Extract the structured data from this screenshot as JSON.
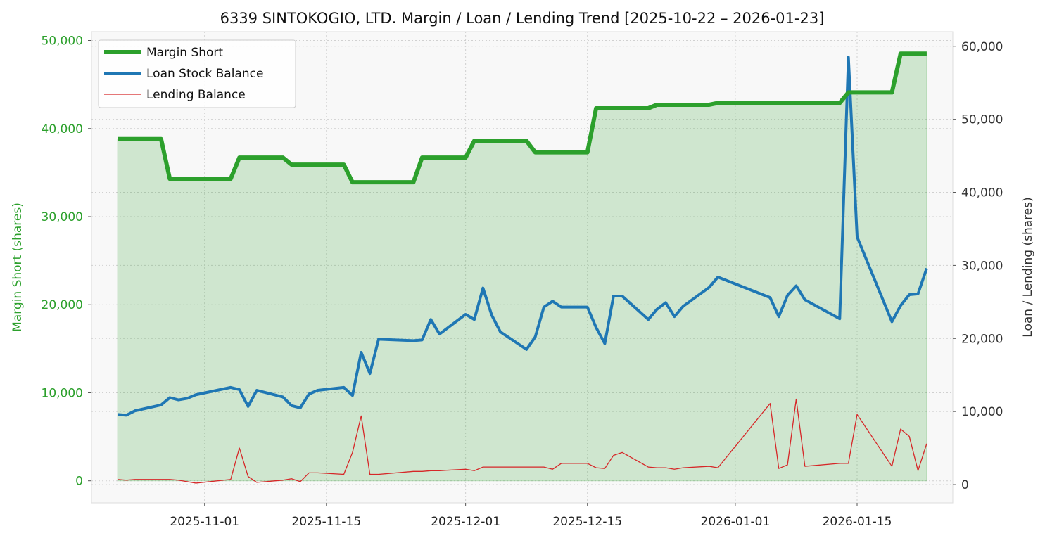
{
  "chart_data": {
    "type": "line",
    "title": "6339 SINTOKOGIO, LTD. Margin / Loan / Lending Trend [2025-10-22 – 2026-01-23]",
    "ylabel_left": "Margin Short (shares)",
    "ylabel_right": "Loan / Lending (shares)",
    "xlim": [
      "2025-10-19",
      "2026-01-26"
    ],
    "ylim_left": [
      -2500,
      51000
    ],
    "ylim_right": [
      -2500,
      62000
    ],
    "left_ticks": [
      0,
      10000,
      20000,
      30000,
      40000,
      50000
    ],
    "left_tick_labels": [
      "0",
      "10,000",
      "20,000",
      "30,000",
      "40,000",
      "50,000"
    ],
    "right_ticks": [
      0,
      10000,
      20000,
      30000,
      40000,
      50000,
      60000
    ],
    "right_tick_labels": [
      "0",
      "10,000",
      "20,000",
      "30,000",
      "40,000",
      "50,000",
      "60,000"
    ],
    "x_ticks": [
      "2025-11-01",
      "2025-11-15",
      "2025-12-01",
      "2025-12-15",
      "2026-01-01",
      "2026-01-15"
    ],
    "x_tick_labels": [
      "2025-11-01",
      "2025-11-15",
      "2025-12-01",
      "2025-12-15",
      "2026-01-01",
      "2026-01-15"
    ],
    "legend_position": "top-left",
    "colors": {
      "margin": "#2ca02c",
      "loan": "#1f77b4",
      "lending": "#d62728",
      "fill": "#2ca02c",
      "plot_bg": "#f8f8f8",
      "grid": "#d0d0d0"
    },
    "series": [
      {
        "name": "Margin Short",
        "axis": "left",
        "key": "margin",
        "points": [
          [
            "2025-10-22",
            38800
          ],
          [
            "2025-10-23",
            38800
          ],
          [
            "2025-10-24",
            38800
          ],
          [
            "2025-10-27",
            38800
          ],
          [
            "2025-10-28",
            34300
          ],
          [
            "2025-10-29",
            34300
          ],
          [
            "2025-10-30",
            34300
          ],
          [
            "2025-10-31",
            34300
          ],
          [
            "2025-11-04",
            34300
          ],
          [
            "2025-11-05",
            36700
          ],
          [
            "2025-11-06",
            36700
          ],
          [
            "2025-11-07",
            36700
          ],
          [
            "2025-11-10",
            36700
          ],
          [
            "2025-11-11",
            35900
          ],
          [
            "2025-11-12",
            35900
          ],
          [
            "2025-11-13",
            35900
          ],
          [
            "2025-11-14",
            35900
          ],
          [
            "2025-11-17",
            35900
          ],
          [
            "2025-11-18",
            33900
          ],
          [
            "2025-11-19",
            33900
          ],
          [
            "2025-11-20",
            33900
          ],
          [
            "2025-11-21",
            33900
          ],
          [
            "2025-11-25",
            33900
          ],
          [
            "2025-11-26",
            36700
          ],
          [
            "2025-11-27",
            36700
          ],
          [
            "2025-11-28",
            36700
          ],
          [
            "2025-12-01",
            36700
          ],
          [
            "2025-12-02",
            38600
          ],
          [
            "2025-12-03",
            38600
          ],
          [
            "2025-12-04",
            38600
          ],
          [
            "2025-12-05",
            38600
          ],
          [
            "2025-12-08",
            38600
          ],
          [
            "2025-12-09",
            37300
          ],
          [
            "2025-12-10",
            37300
          ],
          [
            "2025-12-11",
            37300
          ],
          [
            "2025-12-12",
            37300
          ],
          [
            "2025-12-15",
            37300
          ],
          [
            "2025-12-16",
            42300
          ],
          [
            "2025-12-17",
            42300
          ],
          [
            "2025-12-18",
            42300
          ],
          [
            "2025-12-19",
            42300
          ],
          [
            "2025-12-22",
            42300
          ],
          [
            "2025-12-23",
            42700
          ],
          [
            "2025-12-24",
            42700
          ],
          [
            "2025-12-25",
            42700
          ],
          [
            "2025-12-26",
            42700
          ],
          [
            "2025-12-29",
            42700
          ],
          [
            "2025-12-30",
            42900
          ],
          [
            "2026-01-05",
            42900
          ],
          [
            "2026-01-06",
            42900
          ],
          [
            "2026-01-07",
            42900
          ],
          [
            "2026-01-08",
            42900
          ],
          [
            "2026-01-09",
            42900
          ],
          [
            "2026-01-13",
            42900
          ],
          [
            "2026-01-14",
            44100
          ],
          [
            "2026-01-15",
            44100
          ],
          [
            "2026-01-16",
            44100
          ],
          [
            "2026-01-19",
            44100
          ],
          [
            "2026-01-20",
            48500
          ],
          [
            "2026-01-21",
            48500
          ],
          [
            "2026-01-22",
            48500
          ],
          [
            "2026-01-23",
            48500
          ]
        ]
      },
      {
        "name": "Loan Stock Balance",
        "axis": "right",
        "key": "loan",
        "points": [
          [
            "2025-10-22",
            9600
          ],
          [
            "2025-10-23",
            9500
          ],
          [
            "2025-10-24",
            10100
          ],
          [
            "2025-10-27",
            10900
          ],
          [
            "2025-10-28",
            11900
          ],
          [
            "2025-10-29",
            11600
          ],
          [
            "2025-10-30",
            11800
          ],
          [
            "2025-10-31",
            12300
          ],
          [
            "2025-11-04",
            13300
          ],
          [
            "2025-11-05",
            13000
          ],
          [
            "2025-11-06",
            10700
          ],
          [
            "2025-11-07",
            12900
          ],
          [
            "2025-11-10",
            12000
          ],
          [
            "2025-11-11",
            10800
          ],
          [
            "2025-11-12",
            10500
          ],
          [
            "2025-11-13",
            12400
          ],
          [
            "2025-11-14",
            12900
          ],
          [
            "2025-11-17",
            13300
          ],
          [
            "2025-11-18",
            12200
          ],
          [
            "2025-11-19",
            18100
          ],
          [
            "2025-11-20",
            15200
          ],
          [
            "2025-11-21",
            19900
          ],
          [
            "2025-11-25",
            19700
          ],
          [
            "2025-11-26",
            19800
          ],
          [
            "2025-11-27",
            22600
          ],
          [
            "2025-11-28",
            20600
          ],
          [
            "2025-12-01",
            23300
          ],
          [
            "2025-12-02",
            22600
          ],
          [
            "2025-12-03",
            26900
          ],
          [
            "2025-12-04",
            23200
          ],
          [
            "2025-12-05",
            20900
          ],
          [
            "2025-12-08",
            18500
          ],
          [
            "2025-12-09",
            20200
          ],
          [
            "2025-12-10",
            24300
          ],
          [
            "2025-12-11",
            25100
          ],
          [
            "2025-12-12",
            24300
          ],
          [
            "2025-12-15",
            24300
          ],
          [
            "2025-12-16",
            21500
          ],
          [
            "2025-12-17",
            19300
          ],
          [
            "2025-12-18",
            25800
          ],
          [
            "2025-12-19",
            25800
          ],
          [
            "2025-12-22",
            22600
          ],
          [
            "2025-12-23",
            24000
          ],
          [
            "2025-12-24",
            24900
          ],
          [
            "2025-12-25",
            23000
          ],
          [
            "2025-12-26",
            24400
          ],
          [
            "2025-12-29",
            27000
          ],
          [
            "2025-12-30",
            28400
          ],
          [
            "2026-01-05",
            25600
          ],
          [
            "2026-01-06",
            23000
          ],
          [
            "2026-01-07",
            25900
          ],
          [
            "2026-01-08",
            27200
          ],
          [
            "2026-01-09",
            25300
          ],
          [
            "2026-01-13",
            22700
          ],
          [
            "2026-01-14",
            58500
          ],
          [
            "2026-01-15",
            33900
          ],
          [
            "2026-01-19",
            22300
          ],
          [
            "2026-01-20",
            24500
          ],
          [
            "2026-01-21",
            26000
          ],
          [
            "2026-01-22",
            26100
          ],
          [
            "2026-01-23",
            29600
          ]
        ]
      },
      {
        "name": "Lending Balance",
        "axis": "right",
        "key": "lending",
        "points": [
          [
            "2025-10-22",
            700
          ],
          [
            "2025-10-23",
            600
          ],
          [
            "2025-10-24",
            700
          ],
          [
            "2025-10-27",
            700
          ],
          [
            "2025-10-28",
            700
          ],
          [
            "2025-10-29",
            600
          ],
          [
            "2025-10-30",
            400
          ],
          [
            "2025-10-31",
            200
          ],
          [
            "2025-11-04",
            700
          ],
          [
            "2025-11-05",
            5000
          ],
          [
            "2025-11-06",
            1100
          ],
          [
            "2025-11-07",
            300
          ],
          [
            "2025-11-10",
            600
          ],
          [
            "2025-11-11",
            800
          ],
          [
            "2025-11-12",
            400
          ],
          [
            "2025-11-13",
            1600
          ],
          [
            "2025-11-14",
            1600
          ],
          [
            "2025-11-17",
            1400
          ],
          [
            "2025-11-18",
            4400
          ],
          [
            "2025-11-19",
            9400
          ],
          [
            "2025-11-20",
            1400
          ],
          [
            "2025-11-21",
            1400
          ],
          [
            "2025-11-25",
            1800
          ],
          [
            "2025-11-26",
            1800
          ],
          [
            "2025-11-27",
            1900
          ],
          [
            "2025-11-28",
            1900
          ],
          [
            "2025-12-01",
            2100
          ],
          [
            "2025-12-02",
            1900
          ],
          [
            "2025-12-03",
            2400
          ],
          [
            "2025-12-04",
            2400
          ],
          [
            "2025-12-05",
            2400
          ],
          [
            "2025-12-08",
            2400
          ],
          [
            "2025-12-09",
            2400
          ],
          [
            "2025-12-10",
            2400
          ],
          [
            "2025-12-11",
            2100
          ],
          [
            "2025-12-12",
            2900
          ],
          [
            "2025-12-15",
            2900
          ],
          [
            "2025-12-16",
            2300
          ],
          [
            "2025-12-17",
            2200
          ],
          [
            "2025-12-18",
            4000
          ],
          [
            "2025-12-19",
            4400
          ],
          [
            "2025-12-22",
            2400
          ],
          [
            "2025-12-23",
            2300
          ],
          [
            "2025-12-24",
            2300
          ],
          [
            "2025-12-25",
            2100
          ],
          [
            "2025-12-26",
            2300
          ],
          [
            "2025-12-29",
            2500
          ],
          [
            "2025-12-30",
            2300
          ],
          [
            "2026-01-05",
            11100
          ],
          [
            "2026-01-06",
            2200
          ],
          [
            "2026-01-07",
            2700
          ],
          [
            "2026-01-08",
            11700
          ],
          [
            "2026-01-09",
            2500
          ],
          [
            "2026-01-13",
            2900
          ],
          [
            "2026-01-14",
            2900
          ],
          [
            "2026-01-15",
            9600
          ],
          [
            "2026-01-19",
            2500
          ],
          [
            "2026-01-20",
            7600
          ],
          [
            "2026-01-21",
            6600
          ],
          [
            "2026-01-22",
            1900
          ],
          [
            "2026-01-23",
            5600
          ]
        ]
      }
    ]
  }
}
